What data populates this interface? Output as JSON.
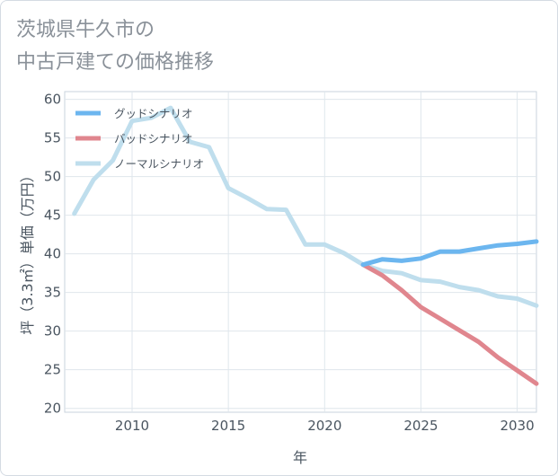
{
  "title_lines": [
    "茨城県牛久市の",
    "中古戸建ての価格推移"
  ],
  "chart_data": {
    "type": "line",
    "xlabel": "年",
    "ylabel": "坪（3.3㎡）単価（万円）",
    "xlim": [
      2006.5,
      2031
    ],
    "ylim": [
      19.5,
      61
    ],
    "xticks": [
      2010,
      2015,
      2020,
      2025,
      2030
    ],
    "yticks": [
      20,
      25,
      30,
      35,
      40,
      45,
      50,
      55,
      60
    ],
    "grid": true,
    "legend_position": "top-left",
    "series": [
      {
        "name": "グッドシナリオ",
        "color": "#6cb6ef",
        "x": [
          2022,
          2023,
          2024,
          2025,
          2026,
          2027,
          2028,
          2029,
          2030,
          2031
        ],
        "y": [
          38.6,
          39.3,
          39.1,
          39.4,
          40.3,
          40.3,
          40.7,
          41.1,
          41.3,
          41.6
        ]
      },
      {
        "name": "バッドシナリオ",
        "color": "#e0868e",
        "x": [
          2022,
          2023,
          2024,
          2025,
          2026,
          2027,
          2028,
          2029,
          2030,
          2031
        ],
        "y": [
          38.6,
          37.2,
          35.3,
          33.1,
          31.6,
          30.1,
          28.6,
          26.6,
          24.9,
          23.2
        ]
      },
      {
        "name": "ノーマルシナリオ",
        "color": "#bfdeed",
        "x": [
          2007,
          2008,
          2009,
          2010,
          2011,
          2012,
          2013,
          2014,
          2015,
          2016,
          2017,
          2018,
          2019,
          2020,
          2021,
          2022,
          2023,
          2024,
          2025,
          2026,
          2027,
          2028,
          2029,
          2030,
          2031
        ],
        "y": [
          45.2,
          49.6,
          52.1,
          57.2,
          57.6,
          58.9,
          54.5,
          53.8,
          48.5,
          47.2,
          45.8,
          45.7,
          41.2,
          41.2,
          40.1,
          38.6,
          37.8,
          37.5,
          36.6,
          36.4,
          35.7,
          35.3,
          34.5,
          34.2,
          33.3
        ]
      }
    ]
  }
}
